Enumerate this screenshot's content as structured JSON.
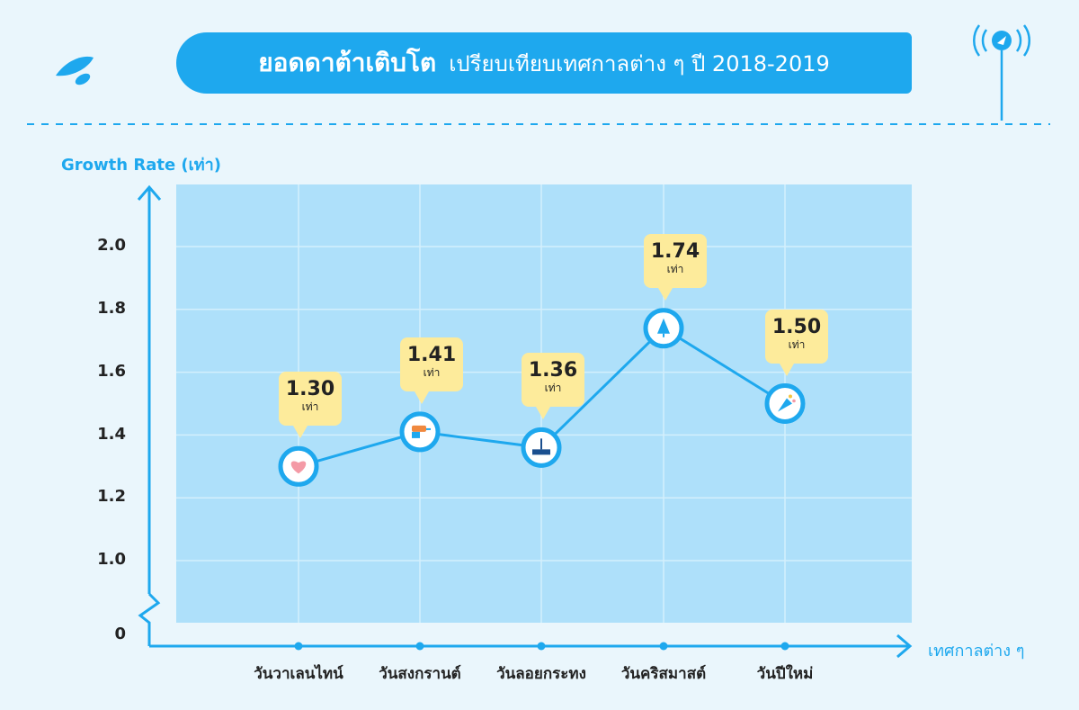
{
  "header": {
    "title_main": "ยอดดาต้าเติบโต",
    "title_sub": "เปรียบเทียบเทศกาลต่าง ๆ ปี 2018-2019"
  },
  "colors": {
    "accent": "#1ea8ee",
    "plot_bg": "#aee0fa",
    "page_bg": "#eaf6fc",
    "bubble": "#fdeb9b"
  },
  "icons": [
    "telenor-logo-icon",
    "signal-tower-icon",
    "heart-icon",
    "water-gun-icon",
    "krathong-icon",
    "tree-icon",
    "party-popper-icon"
  ],
  "chart_data": {
    "type": "line",
    "ylabel": "Growth Rate (เท่า)",
    "xlabel": "เทศกาลต่าง ๆ",
    "ylim": [
      1.0,
      2.2
    ],
    "y_ticks": [
      "2.0",
      "1.8",
      "1.6",
      "1.4",
      "1.2",
      "1.0",
      "0"
    ],
    "categories": [
      "วันวาเลนไทน์",
      "วันสงกรานต์",
      "วันลอยกระทง",
      "วันคริสมาสต์",
      "วันปีใหม่"
    ],
    "values": [
      1.3,
      1.41,
      1.36,
      1.74,
      1.5
    ],
    "value_labels": [
      "1.30",
      "1.41",
      "1.36",
      "1.74",
      "1.50"
    ],
    "unit_label": "เท่า",
    "point_icons": [
      "heart-icon",
      "water-gun-icon",
      "krathong-icon",
      "tree-icon",
      "party-popper-icon"
    ],
    "grid": true,
    "axis_break": true
  }
}
